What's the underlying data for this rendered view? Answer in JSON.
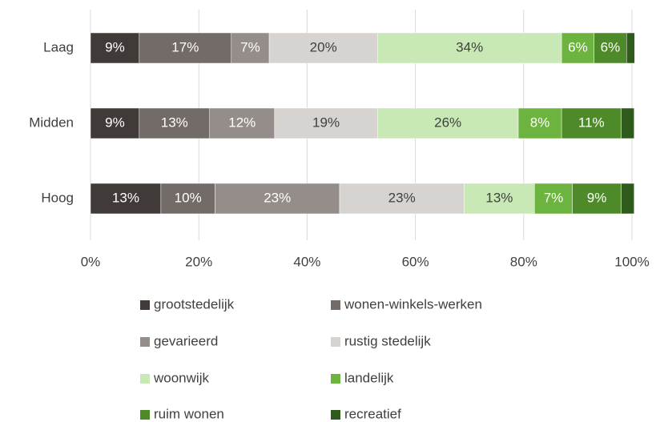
{
  "chart_data": {
    "type": "stacked-bar-horizontal",
    "categories": [
      "Laag",
      "Midden",
      "Hoog"
    ],
    "series": [
      {
        "name": "grootstedelijk",
        "color": "#403b38",
        "values": [
          9,
          9,
          13
        ],
        "value_labels": [
          "9%",
          "9%",
          "13%"
        ]
      },
      {
        "name": "wonen-winkels-werken",
        "color": "#736b67",
        "values": [
          17,
          13,
          10
        ],
        "value_labels": [
          "17%",
          "13%",
          "10%"
        ]
      },
      {
        "name": "gevarieerd",
        "color": "#958d89",
        "values": [
          7,
          12,
          23
        ],
        "value_labels": [
          "7%",
          "12%",
          "23%"
        ]
      },
      {
        "name": "rustig stedelijk",
        "color": "#d6d3d1",
        "values": [
          20,
          19,
          23
        ],
        "value_labels": [
          "20%",
          "19%",
          "23%"
        ]
      },
      {
        "name": "woonwijk",
        "color": "#c8e8b6",
        "values": [
          34,
          26,
          13
        ],
        "value_labels": [
          "34%",
          "26%",
          "13%"
        ]
      },
      {
        "name": "landelijk",
        "color": "#6db33f",
        "values": [
          6,
          8,
          7
        ],
        "value_labels": [
          "6%",
          "8%",
          "7%"
        ]
      },
      {
        "name": "ruim wonen",
        "color": "#4e8a2a",
        "values": [
          6,
          11,
          9
        ],
        "value_labels": [
          "6%",
          "11%",
          "9%"
        ]
      },
      {
        "name": "recreatief",
        "color": "#2e5a1b",
        "values": [
          1.5,
          2.4,
          2.4
        ],
        "value_labels": [
          null,
          null,
          null
        ]
      }
    ],
    "xlim": [
      0,
      100
    ],
    "xticks": [
      {
        "value": 0,
        "label": "0%"
      },
      {
        "value": 20,
        "label": "20%"
      },
      {
        "value": 40,
        "label": "40%"
      },
      {
        "value": 60,
        "label": "60%"
      },
      {
        "value": 80,
        "label": "80%"
      },
      {
        "value": 100,
        "label": "100%"
      }
    ],
    "grid": true
  }
}
